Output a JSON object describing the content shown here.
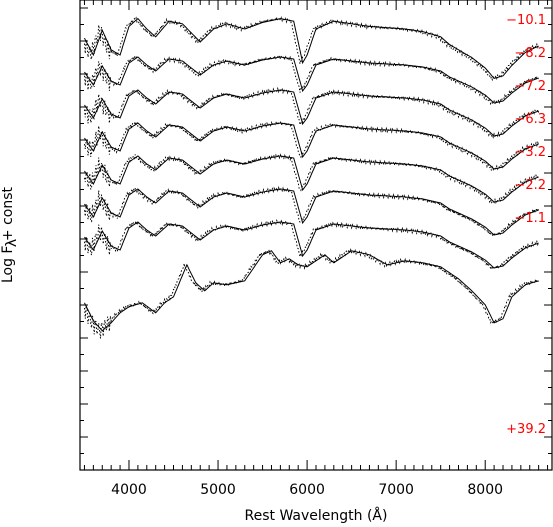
{
  "chart_data": {
    "type": "line",
    "title": "",
    "xlabel": "Rest Wavelength (Å)",
    "ylabel": "Log F + const",
    "ylabel_subscript": "λ",
    "xlim": [
      3450,
      8750
    ],
    "x_ticks": [
      4000,
      5000,
      6000,
      7000,
      8000
    ],
    "x_tick_labels": [
      "4000",
      "5000",
      "6000",
      "7000",
      "8000"
    ],
    "label_color": "#ff0000",
    "line_color": "#000000",
    "series_styles": {
      "observed": "dotted",
      "model": "solid"
    },
    "epochs": [
      {
        "label": "−10.1",
        "offset": 0
      },
      {
        "label": "−8.2",
        "offset": 1
      },
      {
        "label": "−7.2",
        "offset": 2
      },
      {
        "label": "−6.3",
        "offset": 3
      },
      {
        "label": "−3.2",
        "offset": 4
      },
      {
        "label": "−2.2",
        "offset": 5
      },
      {
        "label": "−1.1",
        "offset": 6
      },
      {
        "label": "+39.2",
        "offset": 7.6
      }
    ],
    "template_premax": {
      "x": [
        3500,
        3600,
        3700,
        3800,
        3900,
        4000,
        4100,
        4200,
        4300,
        4450,
        4600,
        4800,
        4950,
        5100,
        5300,
        5500,
        5700,
        5850,
        5950,
        6000,
        6100,
        6300,
        6500,
        6700,
        6900,
        7100,
        7300,
        7500,
        7600,
        7700,
        7850,
        8000,
        8100,
        8200,
        8300,
        8450,
        8600
      ],
      "y": [
        3,
        -10,
        9,
        -6,
        -10,
        12,
        18,
        10,
        4,
        16,
        14,
        0,
        10,
        14,
        10,
        15,
        18,
        16,
        -16,
        -10,
        10,
        16,
        14,
        12,
        11,
        10,
        8,
        4,
        -2,
        -6,
        -12,
        -20,
        -28,
        -26,
        -18,
        -8,
        -3
      ]
    },
    "template_postmax": {
      "x": [
        3500,
        3600,
        3700,
        3800,
        3900,
        4000,
        4150,
        4300,
        4400,
        4500,
        4650,
        4750,
        4850,
        4950,
        5100,
        5300,
        5500,
        5600,
        5700,
        5800,
        5900,
        6000,
        6100,
        6200,
        6300,
        6500,
        6700,
        6900,
        7100,
        7300,
        7500,
        7600,
        7700,
        7850,
        8000,
        8100,
        8200,
        8300,
        8450,
        8600
      ],
      "y": [
        -10,
        -28,
        -38,
        -30,
        -20,
        -14,
        -10,
        -20,
        -10,
        -4,
        28,
        10,
        2,
        10,
        8,
        12,
        38,
        42,
        30,
        34,
        28,
        26,
        32,
        38,
        30,
        42,
        38,
        28,
        32,
        30,
        26,
        20,
        14,
        2,
        -12,
        -30,
        -26,
        -4,
        8,
        12
      ]
    }
  }
}
